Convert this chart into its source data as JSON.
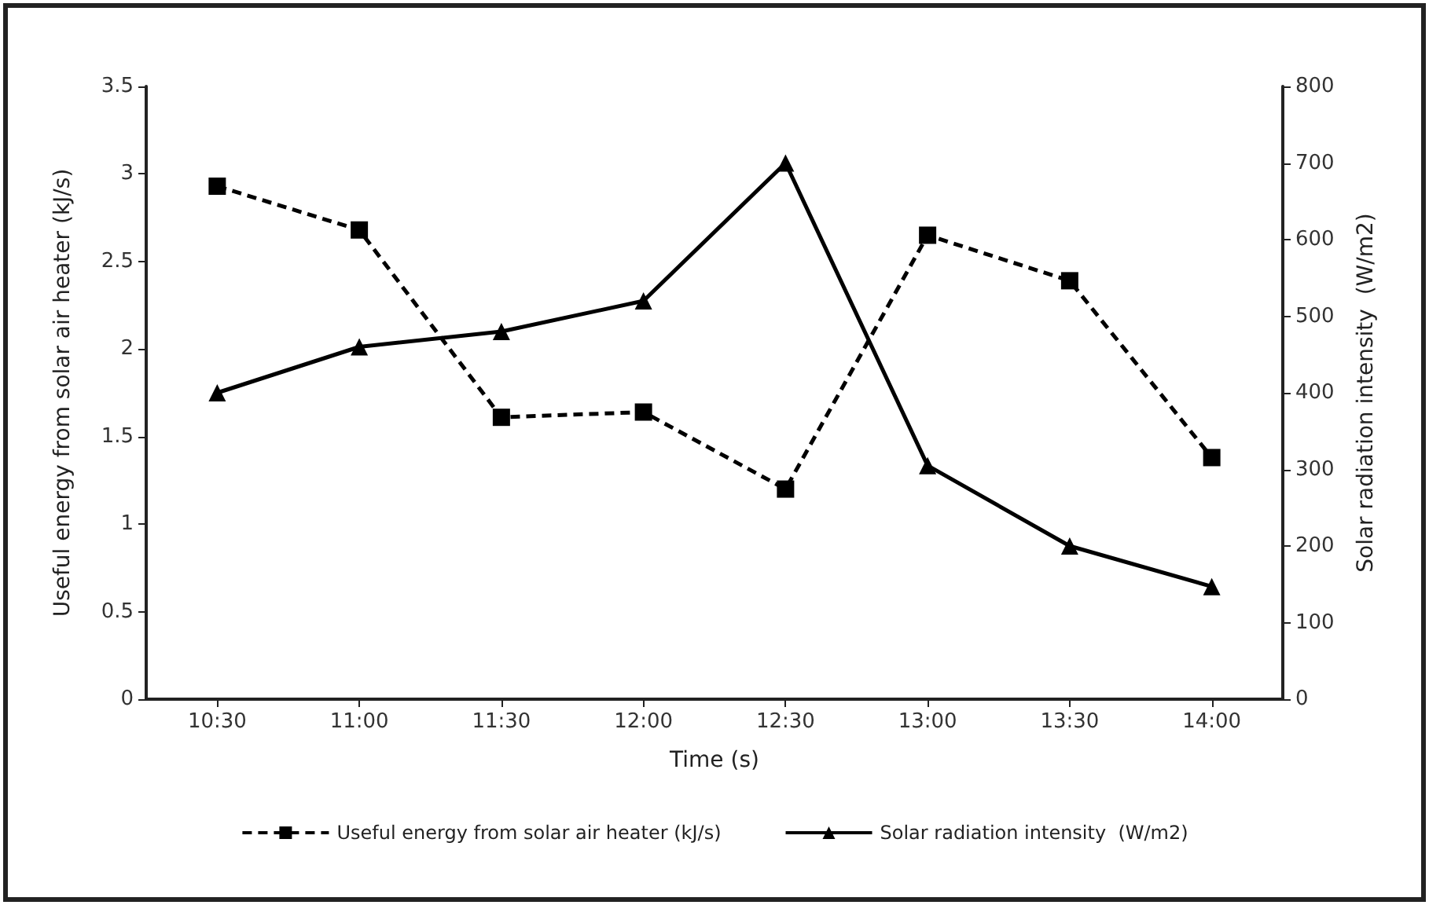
{
  "chart_data": {
    "type": "line",
    "xlabel": "Time (s)",
    "ylabel": "Useful energy from solar air heater (kJ/s)",
    "y2label": "Solar radiation intensity  (W/m2)",
    "categories": [
      "10:30",
      "11:00",
      "11:30",
      "12:00",
      "12:30",
      "13:00",
      "13:30",
      "14:00"
    ],
    "series": [
      {
        "name": "Useful energy from solar air heater (kJ/s)",
        "color": "#000000",
        "marker": "square",
        "line_style": "dashed",
        "values": [
          2.93,
          2.68,
          1.61,
          1.64,
          1.2,
          2.65,
          2.39,
          1.38
        ]
      },
      {
        "name": "Solar radiation intensity  (W/m2)",
        "color": "#000000",
        "marker": "triangle",
        "line_style": "solid",
        "axis": "y2",
        "values": [
          400,
          460,
          480,
          520,
          700,
          305,
          200,
          147
        ]
      }
    ],
    "ylim": [
      0,
      3.5
    ],
    "yticks": [
      0,
      0.5,
      1,
      1.5,
      2,
      2.5,
      3,
      3.5
    ],
    "y2lim": [
      0,
      800
    ],
    "y2ticks": [
      0,
      100,
      200,
      300,
      400,
      500,
      600,
      700,
      800
    ],
    "grid": false,
    "legend": "bottom"
  }
}
